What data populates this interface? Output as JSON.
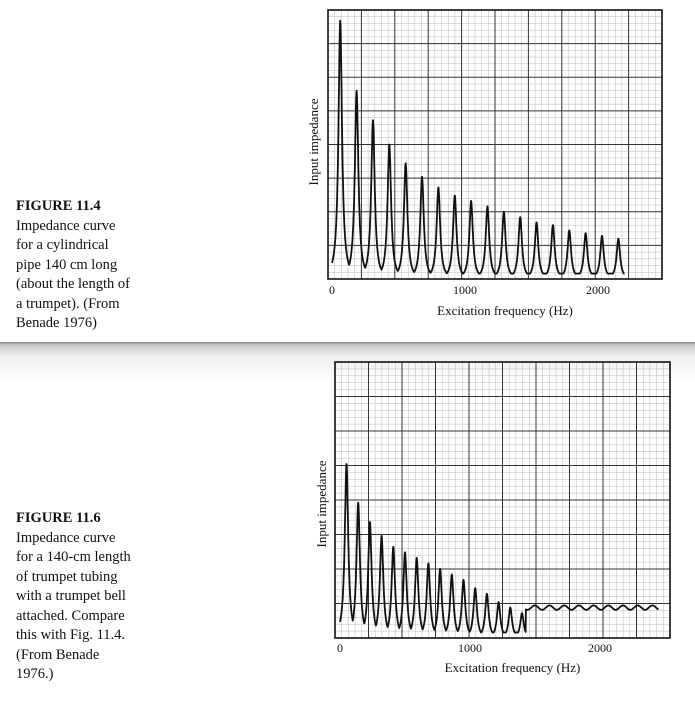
{
  "figures": [
    {
      "label": "FIGURE 11.4",
      "caption_lines": [
        "Impedance curve",
        "for a cylindrical",
        "pipe 140 cm long",
        "(about the length of",
        "a trumpet). (From",
        "Benade 1976)"
      ]
    },
    {
      "label": "FIGURE 11.6",
      "caption_lines": [
        "Impedance curve",
        "for a 140-cm length",
        "of trumpet tubing",
        "with a trumpet bell",
        "attached. Compare",
        "this with Fig. 11.4.",
        "(From Benade",
        "1976.)"
      ]
    }
  ],
  "chart_data": [
    {
      "type": "line",
      "title": "",
      "xlabel": "Excitation frequency (Hz)",
      "ylabel": "Input impedance",
      "xticks": [
        0,
        1000,
        2000
      ],
      "xlim": [
        0,
        2400
      ],
      "ylim": [
        0,
        1
      ],
      "grid": true,
      "series": [
        {
          "peaks_hz": [
            62,
            185,
            308,
            431,
            554,
            677,
            800,
            923,
            1046,
            1169,
            1292,
            1415,
            1538,
            1661,
            1784,
            1907,
            2030,
            2153
          ],
          "peak_heights": [
            0.96,
            0.7,
            0.59,
            0.5,
            0.43,
            0.38,
            0.34,
            0.31,
            0.29,
            0.27,
            0.25,
            0.23,
            0.21,
            0.2,
            0.18,
            0.17,
            0.16,
            0.15
          ],
          "x_end_hz": 2200,
          "baseline": 0.02
        }
      ]
    },
    {
      "type": "line",
      "title": "",
      "xlabel": "Excitation frequency (Hz)",
      "ylabel": "Input impedance",
      "xticks": [
        0,
        1000,
        2000
      ],
      "xlim": [
        0,
        2450
      ],
      "ylim": [
        0,
        1
      ],
      "grid": true,
      "series": [
        {
          "peaks_hz": [
            50,
            140,
            230,
            320,
            410,
            500,
            590,
            680,
            770,
            860,
            950,
            1040,
            1130,
            1220,
            1310,
            1400
          ],
          "peak_heights": [
            0.63,
            0.49,
            0.42,
            0.37,
            0.33,
            0.31,
            0.29,
            0.27,
            0.25,
            0.23,
            0.21,
            0.18,
            0.16,
            0.13,
            0.11,
            0.09
          ],
          "plateau_from_hz": 1430,
          "plateau_level": 0.11,
          "baseline": 0.02
        }
      ]
    }
  ]
}
